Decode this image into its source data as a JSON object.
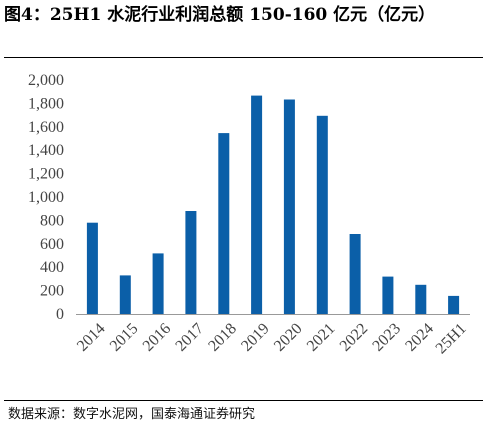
{
  "header": {
    "title": "图4：25H1 水泥行业利润总额 150-160 亿元（亿元）"
  },
  "footer": {
    "source": "数据来源：数字水泥网，国泰海通证券研究"
  },
  "colors": {
    "bar": "#0b5fa8",
    "axis": "#999999"
  },
  "chart_data": {
    "type": "bar",
    "categories": [
      "2014",
      "2015",
      "2016",
      "2017",
      "2018",
      "2019",
      "2020",
      "2021",
      "2022",
      "2023",
      "2024",
      "25H1"
    ],
    "values": [
      780,
      330,
      518,
      880,
      1546,
      1867,
      1833,
      1694,
      684,
      320,
      250,
      155
    ],
    "y_ticks": [
      "0",
      "200",
      "400",
      "600",
      "800",
      "1,000",
      "1,200",
      "1,400",
      "1,600",
      "1,800",
      "2,000"
    ],
    "ylim": [
      0,
      2000
    ],
    "grid": false,
    "legend": "none"
  }
}
